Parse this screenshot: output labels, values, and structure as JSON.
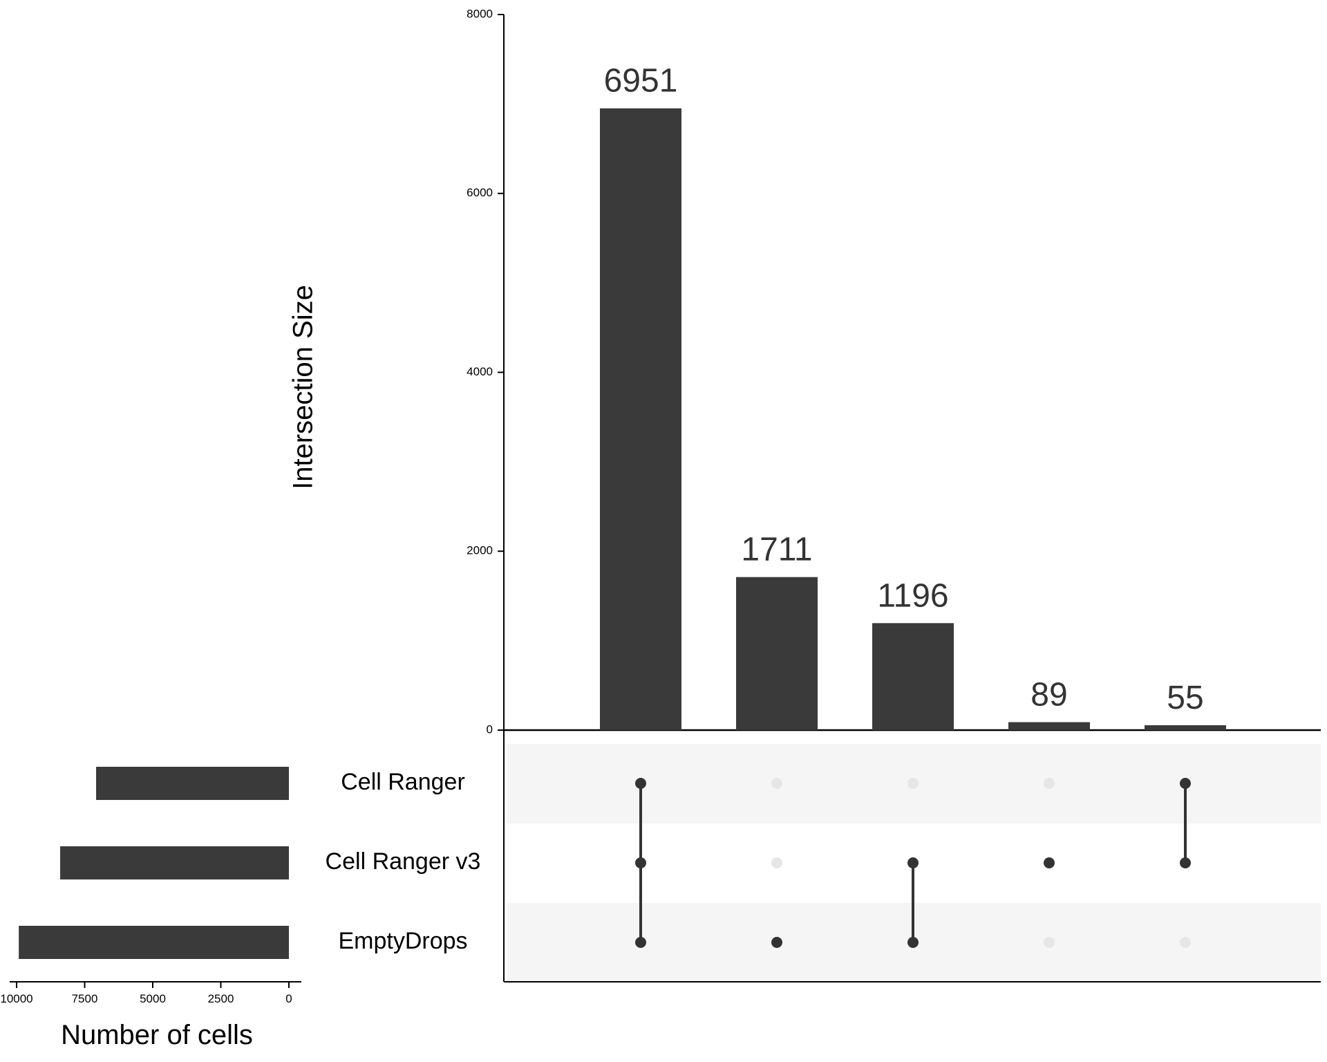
{
  "chart_data": {
    "type": "bar",
    "subtype": "upset",
    "colors": {
      "bar": "#3a3a3a",
      "dot_active": "#333333",
      "dot_inactive": "#e6e6e6",
      "stripe": "#f5f5f5",
      "axis": "#000000"
    },
    "intersections": {
      "ylabel": "Intersection Size",
      "ylim": [
        0,
        8000
      ],
      "yticks": [
        "0",
        "2000",
        "4000",
        "6000",
        "8000"
      ],
      "values": [
        6951,
        1711,
        1196,
        89,
        55
      ],
      "labels": [
        "6951",
        "1711",
        "1196",
        "89",
        "55"
      ],
      "membership": [
        [
          "Cell Ranger",
          "Cell Ranger v3",
          "EmptyDrops"
        ],
        [
          "EmptyDrops"
        ],
        [
          "Cell Ranger v3",
          "EmptyDrops"
        ],
        [
          "Cell Ranger v3"
        ],
        [
          "Cell Ranger",
          "Cell Ranger v3"
        ]
      ]
    },
    "sets": {
      "names": [
        "Cell Ranger",
        "Cell Ranger v3",
        "EmptyDrops"
      ],
      "sizes": [
        7080,
        8400,
        9920
      ],
      "xlabel": "Number of cells",
      "xlim": [
        0,
        10000
      ],
      "xticks": [
        "10000",
        "7500",
        "5000",
        "2500",
        "0"
      ]
    }
  }
}
